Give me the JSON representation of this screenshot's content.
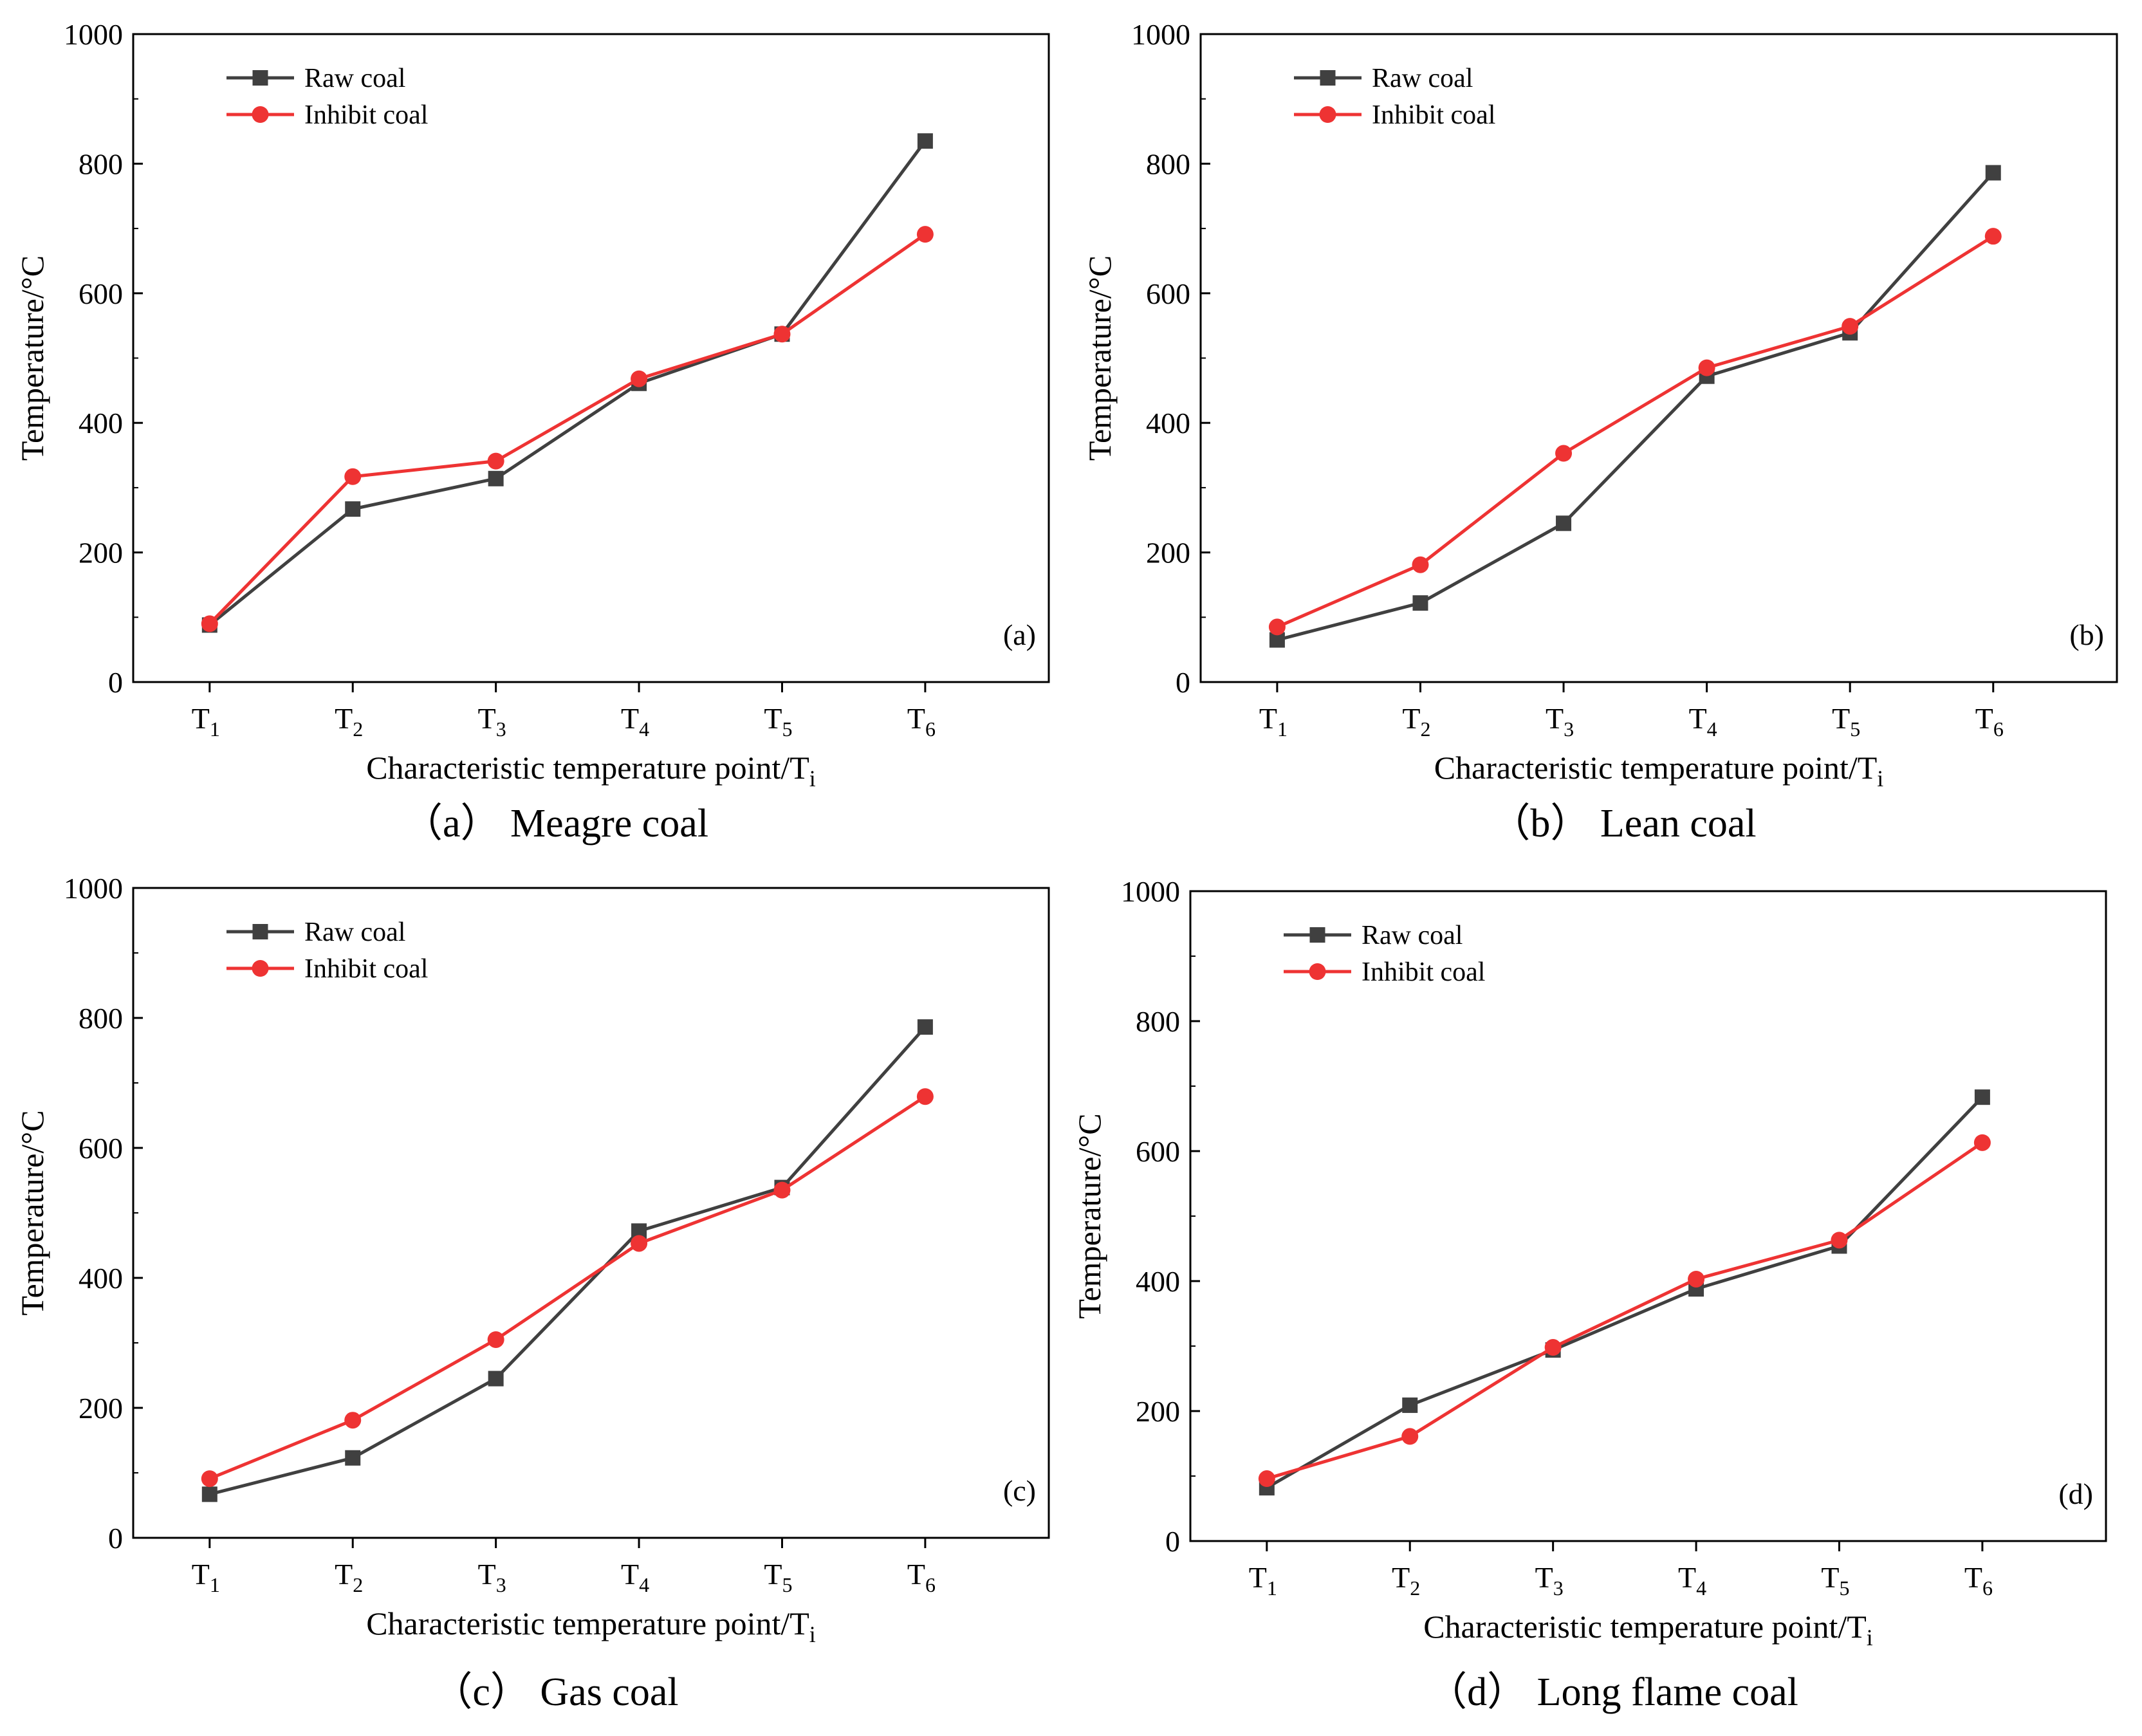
{
  "figure": {
    "y_axis_label": "Temperature/°C",
    "x_axis_label_main": "Characteristic temperature point/T",
    "x_axis_label_sub": "i",
    "colors": {
      "raw": "#404040",
      "inhibit": "#ee3333"
    }
  },
  "chart_data": [
    {
      "type": "line",
      "panel_label": "(a)",
      "caption": "（a） Meagre coal",
      "categories": [
        "T1",
        "T2",
        "T3",
        "T4",
        "T5",
        "T6"
      ],
      "tick_labels": [
        {
          "main": "T",
          "sub": "1"
        },
        {
          "main": "T",
          "sub": "2"
        },
        {
          "main": "T",
          "sub": "3"
        },
        {
          "main": "T",
          "sub": "4"
        },
        {
          "main": "T",
          "sub": "5"
        },
        {
          "main": "T",
          "sub": "6"
        }
      ],
      "xlabel": "Characteristic temperature point/Ti",
      "ylabel": "Temperature/°C",
      "ylim": [
        0,
        1000
      ],
      "yticks": [
        "0",
        "200",
        "400",
        "600",
        "800",
        "1000"
      ],
      "series": [
        {
          "name": "Raw coal",
          "marker": "square",
          "values": [
            88,
            267,
            314,
            461,
            537,
            835
          ]
        },
        {
          "name": "Inhibit coal",
          "marker": "circle",
          "values": [
            90,
            317,
            341,
            468,
            537,
            691
          ]
        }
      ]
    },
    {
      "type": "line",
      "panel_label": "(b)",
      "caption": "（b） Lean coal",
      "categories": [
        "T1",
        "T2",
        "T3",
        "T4",
        "T5",
        "T6"
      ],
      "tick_labels": [
        {
          "main": "T",
          "sub": "1"
        },
        {
          "main": "T",
          "sub": "2"
        },
        {
          "main": "T",
          "sub": "3"
        },
        {
          "main": "T",
          "sub": "4"
        },
        {
          "main": "T",
          "sub": "5"
        },
        {
          "main": "T",
          "sub": "6"
        }
      ],
      "xlabel": "Characteristic temperature point/Ti",
      "ylabel": "Temperature/°C",
      "ylim": [
        0,
        1000
      ],
      "yticks": [
        "0",
        "200",
        "400",
        "600",
        "800",
        "1000"
      ],
      "series": [
        {
          "name": "Raw coal",
          "marker": "square",
          "values": [
            65,
            122,
            245,
            472,
            539,
            786
          ]
        },
        {
          "name": "Inhibit coal",
          "marker": "circle",
          "values": [
            85,
            181,
            353,
            485,
            549,
            688
          ]
        }
      ]
    },
    {
      "type": "line",
      "panel_label": "(c)",
      "caption": "（c） Gas coal",
      "categories": [
        "T1",
        "T2",
        "T3",
        "T4",
        "T5",
        "T6"
      ],
      "tick_labels": [
        {
          "main": "T",
          "sub": "1"
        },
        {
          "main": "T",
          "sub": "2"
        },
        {
          "main": "T",
          "sub": "3"
        },
        {
          "main": "T",
          "sub": "4"
        },
        {
          "main": "T",
          "sub": "5"
        },
        {
          "main": "T",
          "sub": "6"
        }
      ],
      "xlabel": "Characteristic temperature point/Ti",
      "ylabel": "Temperature/°C",
      "ylim": [
        0,
        1000
      ],
      "yticks": [
        "0",
        "200",
        "400",
        "600",
        "800",
        "1000"
      ],
      "series": [
        {
          "name": "Raw coal",
          "marker": "square",
          "values": [
            67,
            123,
            245,
            472,
            539,
            786
          ]
        },
        {
          "name": "Inhibit coal",
          "marker": "circle",
          "values": [
            91,
            181,
            305,
            453,
            535,
            679
          ]
        }
      ]
    },
    {
      "type": "line",
      "panel_label": "(d)",
      "caption": "（d） Long flame coal",
      "categories": [
        "T1",
        "T2",
        "T3",
        "T4",
        "T5",
        "T6"
      ],
      "tick_labels": [
        {
          "main": "T",
          "sub": "1"
        },
        {
          "main": "T",
          "sub": "2"
        },
        {
          "main": "T",
          "sub": "3"
        },
        {
          "main": "T",
          "sub": "4"
        },
        {
          "main": "T",
          "sub": "5"
        },
        {
          "main": "T",
          "sub": "6"
        }
      ],
      "xlabel": "Characteristic temperature point/Ti",
      "ylabel": "Temperature/°C",
      "ylim": [
        0,
        1000
      ],
      "yticks": [
        "0",
        "200",
        "400",
        "600",
        "800",
        "1000"
      ],
      "series": [
        {
          "name": "Raw coal",
          "marker": "square",
          "values": [
            82,
            209,
            294,
            388,
            454,
            683
          ]
        },
        {
          "name": "Inhibit coal",
          "marker": "circle",
          "values": [
            96,
            161,
            298,
            403,
            463,
            613
          ]
        }
      ]
    }
  ]
}
